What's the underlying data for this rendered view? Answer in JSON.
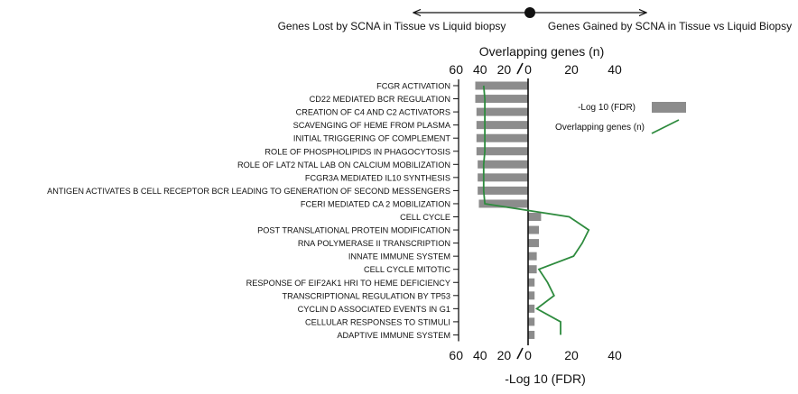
{
  "header": {
    "left_label": "Genes Lost by SCNA in Tissue vs Liquid biopsy",
    "right_label": "Genes Gained by SCNA in Tissue vs Liquid Biopsy"
  },
  "colors": {
    "bar": "#8c8c8c",
    "line": "#2e8b3e",
    "axis": "#111111"
  },
  "chart_data": {
    "type": "bar",
    "orientation": "horizontal",
    "title": "",
    "top_axis_label": "Overlapping genes (n)",
    "bottom_axis_label": "-Log 10 (FDR)",
    "tick_labels": [
      "60",
      "40",
      "20",
      "0",
      "20",
      "40"
    ],
    "axis_break": "between 20 and 0 on the left side",
    "xlim": [
      -60,
      40
    ],
    "ylim": [
      -60,
      40
    ],
    "categories": [
      "FCGR ACTIVATION",
      "CD22 MEDIATED BCR REGULATION",
      "CREATION OF C4 AND C2 ACTIVATORS",
      "SCAVENGING OF HEME FROM PLASMA",
      "INITIAL TRIGGERING OF COMPLEMENT",
      "ROLE OF PHOSPHOLIPIDS IN PHAGOCYTOSIS",
      "ROLE OF LAT2 NTAL LAB ON CALCIUM MOBILIZATION",
      "FCGR3A MEDIATED IL10 SYNTHESIS",
      "ANTIGEN ACTIVATES B CELL RECEPTOR BCR LEADING TO GENERATION OF SECOND MESSENGERS",
      "FCERI MEDIATED CA 2 MOBILIZATION",
      "CELL CYCLE",
      "POST TRANSLATIONAL PROTEIN MODIFICATION",
      "RNA POLYMERASE II TRANSCRIPTION",
      "INNATE IMMUNE SYSTEM",
      "CELL CYCLE MITOTIC",
      "RESPONSE OF EIF2AK1 HRI TO HEME DEFICIENCY",
      "TRANSCRIPTIONAL REGULATION BY TP53",
      "CYCLIN D ASSOCIATED EVENTS IN G1",
      "CELLULAR RESPONSES TO STIMULI",
      "ADAPTIVE IMMUNE SYSTEM"
    ],
    "series": [
      {
        "name": "-Log 10 (FDR)",
        "kind": "bar",
        "values": [
          -44,
          -44,
          -43,
          -43,
          -43,
          -43,
          -42,
          -42,
          -42,
          -41,
          6,
          5,
          5,
          4,
          4,
          3,
          3,
          3,
          3,
          3
        ]
      },
      {
        "name": "Overlapping genes (n)",
        "kind": "line",
        "values": [
          -37,
          -36,
          -36,
          -36,
          -36,
          -36,
          -37,
          -37,
          -37,
          -36,
          19,
          28,
          25,
          21,
          5,
          9,
          12,
          4,
          15,
          15
        ]
      }
    ],
    "legend_position": "right"
  }
}
